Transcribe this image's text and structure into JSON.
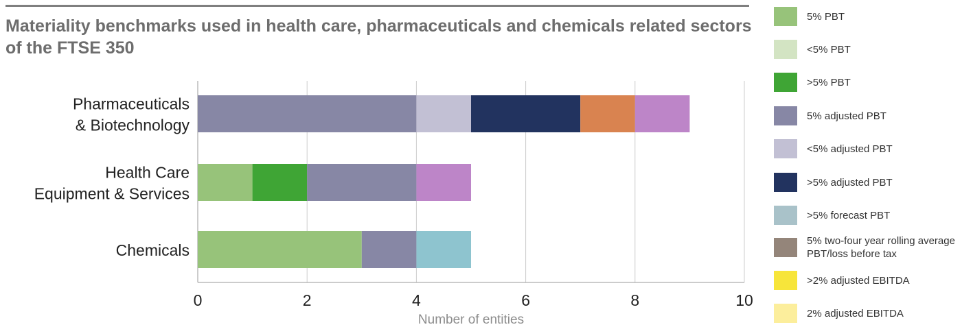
{
  "title": "Materiality benchmarks used in health care, pharmaceuticals and chemicals related sectors of the FTSE 350",
  "chart_data": {
    "type": "bar",
    "orientation": "horizontal",
    "stacked": true,
    "title": "Materiality benchmarks used in health care, pharmaceuticals and chemicals related sectors of the FTSE 350",
    "xlabel": "Number of entities",
    "ylabel": "",
    "xlim": [
      0,
      10
    ],
    "xticks": [
      0,
      2,
      4,
      6,
      8,
      10
    ],
    "grid": "vertical",
    "legend_position": "right",
    "categories": [
      [
        "Pharmaceuticals",
        "& Biotechnology"
      ],
      [
        "Health Care",
        "Equipment & Services"
      ],
      [
        "Chemicals"
      ]
    ],
    "series": [
      {
        "name": "5% PBT",
        "color": "#97c37a",
        "values": [
          0,
          1,
          3
        ]
      },
      {
        "name": "<5% PBT",
        "color": "#d3e4c3",
        "values": [
          0,
          0,
          0
        ]
      },
      {
        "name": ">5% PBT",
        "color": "#3fa535",
        "values": [
          0,
          1,
          0
        ]
      },
      {
        "name": "5% adjusted PBT",
        "color": "#8787a5",
        "values": [
          4,
          2,
          1
        ]
      },
      {
        "name": "<5% adjusted PBT",
        "color": "#c2c0d4",
        "values": [
          1,
          0,
          0
        ]
      },
      {
        "name": ">5% adjusted PBT",
        "color": "#22335f",
        "values": [
          2,
          0,
          0
        ]
      },
      {
        "name": ">5% forecast PBT",
        "color": "#8ec4cf",
        "values": [
          0,
          0,
          1
        ]
      },
      {
        "name": "5% two-four year rolling average PBT/loss before tax",
        "color": "#94857a",
        "values": [
          0,
          0,
          0
        ]
      },
      {
        "name": ">2% adjusted EBITDA",
        "color": "#f7e53a",
        "values": [
          0,
          0,
          0
        ]
      },
      {
        "name": "2% adjusted EBITDA",
        "color": "#fcee9c",
        "values": [
          0,
          0,
          0
        ]
      },
      {
        "name": "",
        "color": "#d98350",
        "values": [
          1,
          0,
          0
        ]
      },
      {
        "name": "",
        "color": "#bd85c8",
        "values": [
          1,
          1,
          0
        ]
      }
    ]
  },
  "legend": [
    {
      "label": "5% PBT",
      "color": "#97c37a"
    },
    {
      "label": "<5% PBT",
      "color": "#d3e4c3"
    },
    {
      "label": ">5% PBT",
      "color": "#3fa535"
    },
    {
      "label": "5% adjusted PBT",
      "color": "#8787a5"
    },
    {
      "label": "<5% adjusted PBT",
      "color": "#c2c0d4"
    },
    {
      "label": ">5% adjusted PBT",
      "color": "#22335f"
    },
    {
      "label": ">5% forecast PBT",
      "color": "#a9c2c9"
    },
    {
      "label": "5% two-four year rolling average PBT/loss before tax",
      "color": "#94857a"
    },
    {
      "label": ">2% adjusted EBITDA",
      "color": "#f7e53a"
    },
    {
      "label": "2% adjusted EBITDA",
      "color": "#fcee9c"
    }
  ]
}
